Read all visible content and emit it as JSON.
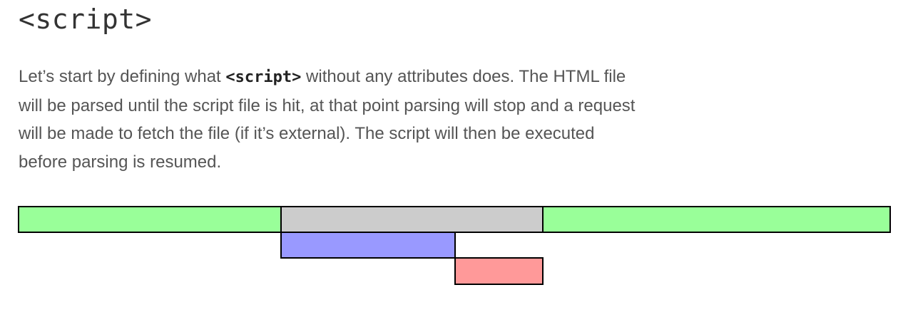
{
  "heading": "<script>",
  "paragraph": {
    "before_code": "Let’s start by defining what ",
    "code": "<script>",
    "after_code": " without any attributes does. The HTML file will be parsed until the script file is hit, at that point parsing will stop and a request will be made to fetch the file (if it’s external). The script will then be executed before parsing is resumed."
  },
  "timeline": {
    "colors": {
      "html_parsing": "#99ff99",
      "parser_paused": "#cccccc",
      "script_download": "#9999ff",
      "script_execution": "#ff9999",
      "outline": "#000000"
    }
  }
}
